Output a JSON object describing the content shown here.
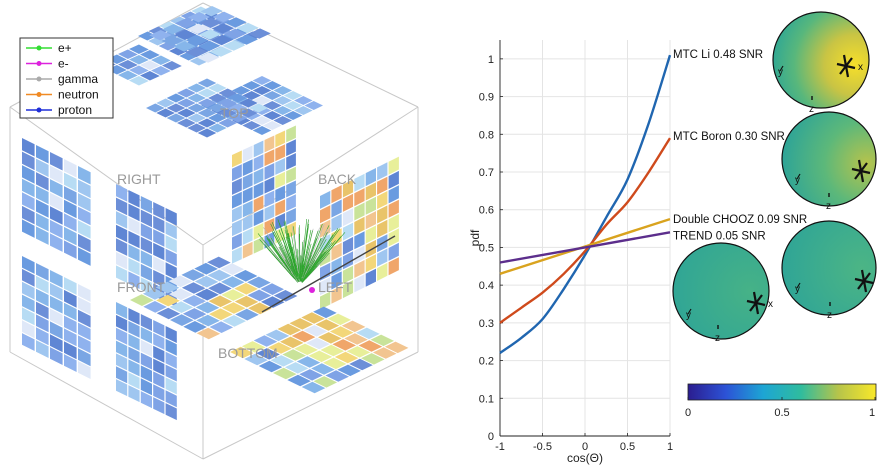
{
  "detector": {
    "face_labels": [
      "TOP",
      "RIGHT",
      "BACK",
      "FRONT",
      "LEFT",
      "BOTTOM"
    ],
    "legend": [
      {
        "label": "e+",
        "color": "#33dd33"
      },
      {
        "label": "e-",
        "color": "#dd22dd"
      },
      {
        "label": "gamma",
        "color": "#aaaaaa"
      },
      {
        "label": "neutron",
        "color": "#f08a24"
      },
      {
        "label": "proton",
        "color": "#1f2fd8"
      }
    ]
  },
  "chart_data": {
    "type": "line",
    "title": "",
    "xlabel": "cos(Θ)",
    "ylabel": "pdf",
    "xlim": [
      -1,
      1
    ],
    "ylim": [
      0,
      1.05
    ],
    "x_ticks": [
      "-1",
      "-0.5",
      "0",
      "0.5",
      "1"
    ],
    "y_ticks": [
      "0",
      "0.1",
      "0.2",
      "0.3",
      "0.4",
      "0.5",
      "0.6",
      "0.7",
      "0.8",
      "0.9",
      "1"
    ],
    "grid": true,
    "series": [
      {
        "name": "MTC Li 0.48 SNR",
        "color": "#2066b0",
        "x": [
          -1,
          -0.75,
          -0.5,
          -0.25,
          0,
          0.25,
          0.5,
          0.75,
          1
        ],
        "y": [
          0.22,
          0.26,
          0.31,
          0.39,
          0.48,
          0.58,
          0.68,
          0.83,
          1.01
        ]
      },
      {
        "name": "MTC Boron 0.30 SNR",
        "color": "#cf4a1c",
        "x": [
          -1,
          -0.75,
          -0.5,
          -0.25,
          0,
          0.25,
          0.5,
          0.75,
          1
        ],
        "y": [
          0.3,
          0.34,
          0.38,
          0.43,
          0.49,
          0.56,
          0.62,
          0.7,
          0.79
        ]
      },
      {
        "name": "Double CHOOZ 0.09 SNR",
        "color": "#d9a31e",
        "x": [
          -1,
          1
        ],
        "y": [
          0.43,
          0.575
        ]
      },
      {
        "name": "TREND 0.05 SNR",
        "color": "#5c2e8c",
        "x": [
          -1,
          1
        ],
        "y": [
          0.46,
          0.54
        ]
      }
    ]
  },
  "spheres": {
    "axis_labels": [
      "x",
      "y",
      "z"
    ]
  },
  "colorbar": {
    "ticks": [
      "0",
      "0.5",
      "1"
    ],
    "range": [
      0,
      1
    ]
  }
}
